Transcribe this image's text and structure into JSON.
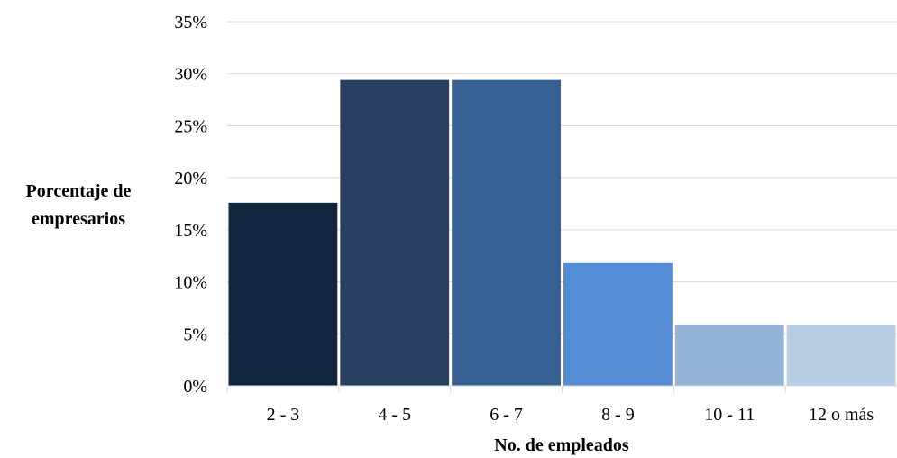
{
  "chart_data": {
    "type": "bar",
    "categories": [
      "2 - 3",
      "4 - 5",
      "6 - 7",
      "8 - 9",
      "10 - 11",
      "12 o más"
    ],
    "values": [
      17.6,
      29.4,
      29.4,
      11.8,
      5.9,
      5.9
    ],
    "colors": [
      "#13263f",
      "#273f60",
      "#376092",
      "#548dd4",
      "#95b3d7",
      "#b8cce4"
    ],
    "title": "",
    "xlabel": "No. de empleados",
    "ylabel": [
      "Porcentaje de",
      "empresarios"
    ],
    "ylim": [
      0,
      35
    ],
    "yticks": [
      "0%",
      "5%",
      "10%",
      "15%",
      "20%",
      "25%",
      "30%",
      "35%"
    ],
    "grid": true,
    "legend": "none"
  }
}
